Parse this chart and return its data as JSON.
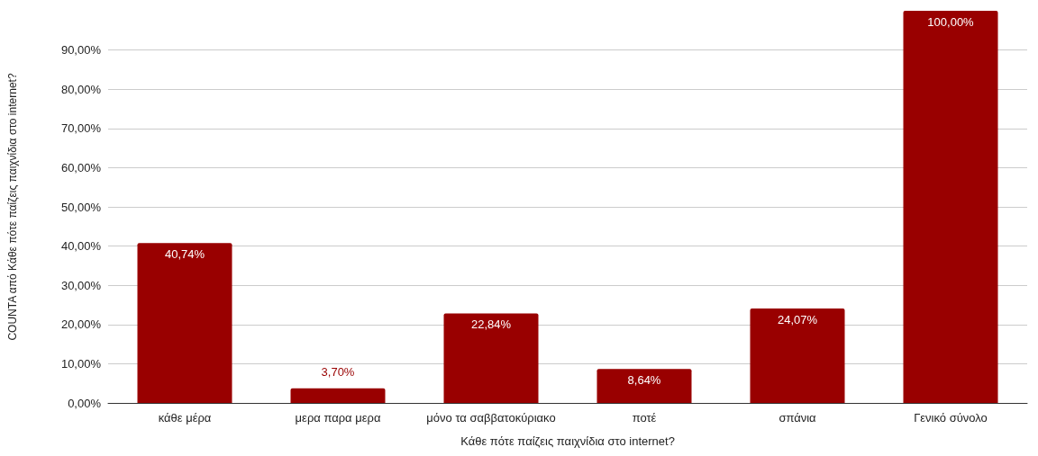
{
  "chart_data": {
    "type": "bar",
    "xlabel": "Κάθε πότε παίζεις παιχνίδια στο internet?",
    "ylabel": "COUNTA από Κάθε πότε παίζεις παιχνίδια στο internet?",
    "categories": [
      "κάθε μέρα",
      "μερα παρα μερα",
      "μόνο τα σαββατοκύριακο",
      "ποτέ",
      "σπάνια",
      "Γενικό σύνολο"
    ],
    "values": [
      40.74,
      3.7,
      22.84,
      8.64,
      24.07,
      100.0
    ],
    "value_labels": [
      "40,74%",
      "3,70%",
      "22,84%",
      "8,64%",
      "24,07%",
      "100,00%"
    ],
    "color": "#990000",
    "ylim": [
      0,
      100
    ],
    "yticks": [
      {
        "value": 0,
        "label": "0,00%"
      },
      {
        "value": 10,
        "label": "10,00%"
      },
      {
        "value": 20,
        "label": "20,00%"
      },
      {
        "value": 30,
        "label": "30,00%"
      },
      {
        "value": 40,
        "label": "40,00%"
      },
      {
        "value": 50,
        "label": "50,00%"
      },
      {
        "value": 60,
        "label": "60,00%"
      },
      {
        "value": 70,
        "label": "70,00%"
      },
      {
        "value": 80,
        "label": "80,00%"
      },
      {
        "value": 90,
        "label": "90,00%"
      }
    ],
    "grid": "y"
  }
}
